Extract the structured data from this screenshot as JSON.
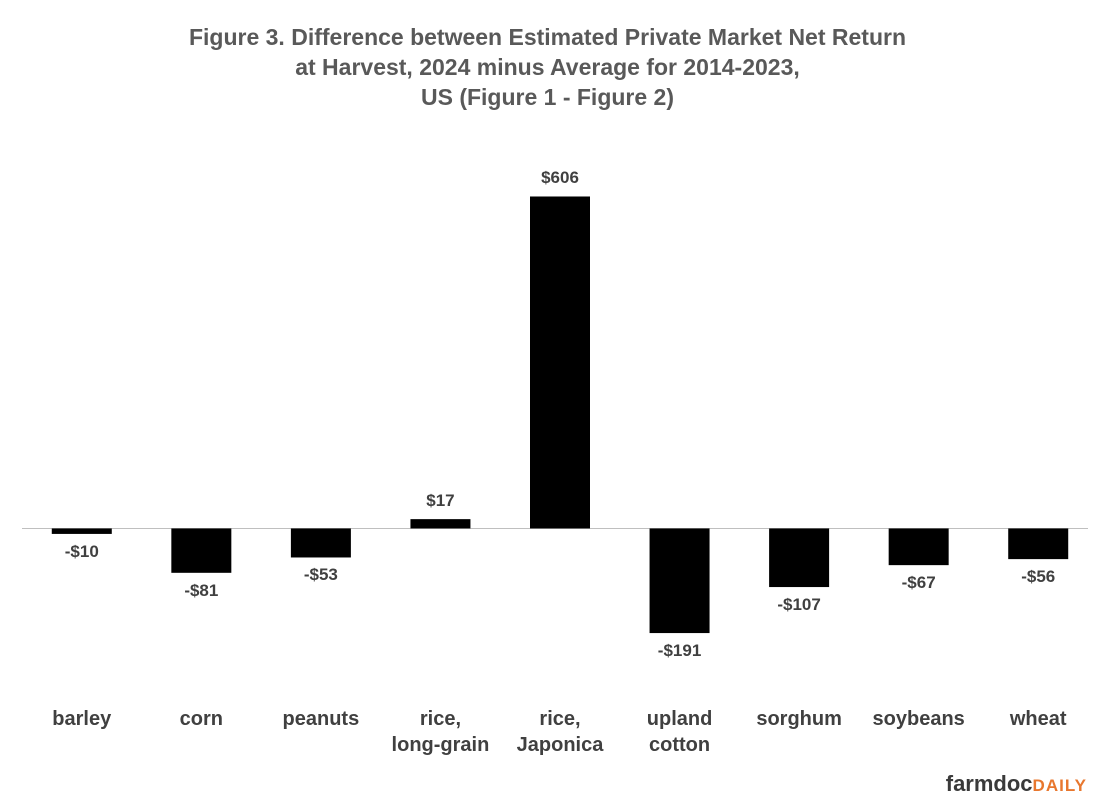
{
  "chart_data": {
    "type": "bar",
    "title": "Figure  3. Difference  between  Estimated  Private  Market  Net  Return\nat Harvest,  2024  minus  Average  for  2014-2023,\nUS (Figure  1 - Figure  2)",
    "categories": [
      "barley",
      "corn",
      "peanuts",
      "rice,\nlong-grain",
      "rice,\nJaponica",
      "upland\ncotton",
      "sorghum",
      "soybeans",
      "wheat"
    ],
    "values": [
      -10,
      -81,
      -53,
      17,
      606,
      -191,
      -107,
      -67,
      -56
    ],
    "value_labels": [
      "-$10",
      "-$81",
      "-$53",
      "$17",
      "$606",
      "-$191",
      "-$107",
      "-$67",
      "-$56"
    ],
    "color": "#000000",
    "ylim": [
      -200,
      700
    ],
    "logo": [
      "farmdoc",
      "DAILY"
    ]
  }
}
